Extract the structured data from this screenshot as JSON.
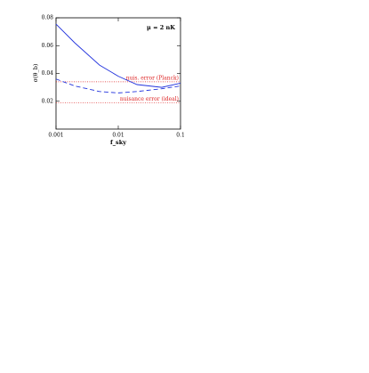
{
  "chart_data": {
    "type": "line",
    "xscale": "log",
    "x": [
      0.001,
      0.002,
      0.005,
      0.01,
      0.02,
      0.05,
      0.1
    ],
    "series": [
      {
        "color": "#2233dd",
        "dash": "solid",
        "values": [
          0.0755,
          0.062,
          0.046,
          0.038,
          0.032,
          0.03,
          0.033
        ]
      },
      {
        "color": "#2233dd",
        "dash": "dashed",
        "values": [
          0.036,
          0.031,
          0.027,
          0.026,
          0.027,
          0.029,
          0.031
        ]
      }
    ],
    "hlines": [
      {
        "value": 0.034,
        "color": "#dd2222",
        "label": "nuis. error (Planck)"
      },
      {
        "value": 0.019,
        "color": "#dd2222",
        "label": "nuisance error (ideal)"
      }
    ],
    "annotation": "μ = 2 nK",
    "xlabel": "f_sky",
    "ylabel": "σ(θ_b)",
    "xlim": [
      0.001,
      0.1
    ],
    "xticks": [
      0.001,
      0.01,
      0.1
    ],
    "ylim": [
      0,
      0.08
    ],
    "yticks": [
      0.02,
      0.04,
      0.06,
      0.08
    ]
  }
}
